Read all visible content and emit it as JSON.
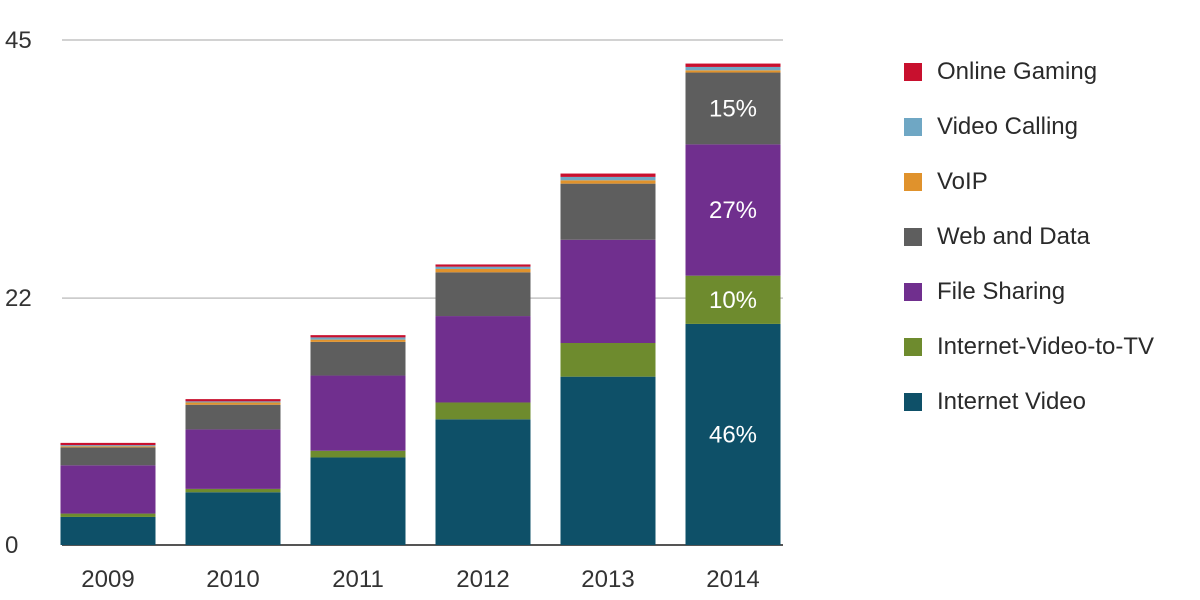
{
  "chart_data": {
    "type": "bar",
    "stacked": true,
    "categories": [
      "2009",
      "2010",
      "2011",
      "2012",
      "2013",
      "2014"
    ],
    "ylim": [
      0,
      45
    ],
    "yticks": [
      0,
      22,
      45
    ],
    "grid": true,
    "legend_position": "right",
    "series": [
      {
        "name": "Internet Video",
        "color": "#0e5068",
        "values": [
          2.5,
          4.7,
          7.8,
          11.2,
          15.0,
          19.7
        ],
        "labels": [
          "",
          "",
          "",
          "",
          "",
          "46%"
        ]
      },
      {
        "name": "Internet-Video-to-TV",
        "color": "#6e8b2e",
        "values": [
          0.3,
          0.3,
          0.6,
          1.5,
          3.0,
          4.3
        ],
        "labels": [
          "",
          "",
          "",
          "",
          "",
          "10%"
        ]
      },
      {
        "name": "File Sharing",
        "color": "#702f8e",
        "values": [
          4.3,
          5.3,
          6.7,
          7.7,
          9.2,
          11.7
        ],
        "labels": [
          "",
          "",
          "",
          "",
          "",
          "27%"
        ]
      },
      {
        "name": "Web and Data",
        "color": "#5e5e5e",
        "values": [
          1.6,
          2.2,
          3.0,
          3.9,
          5.0,
          6.4
        ],
        "labels": [
          "",
          "",
          "",
          "",
          "",
          "15%"
        ]
      },
      {
        "name": "VoIP",
        "color": "#e0922c",
        "values": [
          0.1,
          0.2,
          0.2,
          0.3,
          0.3,
          0.2
        ],
        "labels": [
          "",
          "",
          "",
          "",
          "",
          ""
        ]
      },
      {
        "name": "Video Calling",
        "color": "#6fa7c4",
        "values": [
          0.1,
          0.1,
          0.2,
          0.2,
          0.3,
          0.3
        ],
        "labels": [
          "",
          "",
          "",
          "",
          "",
          ""
        ]
      },
      {
        "name": "Online Gaming",
        "color": "#c8102e",
        "values": [
          0.2,
          0.2,
          0.2,
          0.2,
          0.3,
          0.3
        ],
        "labels": [
          "",
          "",
          "",
          "",
          "",
          ""
        ]
      }
    ],
    "legend_order": [
      "Online Gaming",
      "Video Calling",
      "VoIP",
      "Web and Data",
      "File Sharing",
      "Internet-Video-to-TV",
      "Internet Video"
    ]
  }
}
